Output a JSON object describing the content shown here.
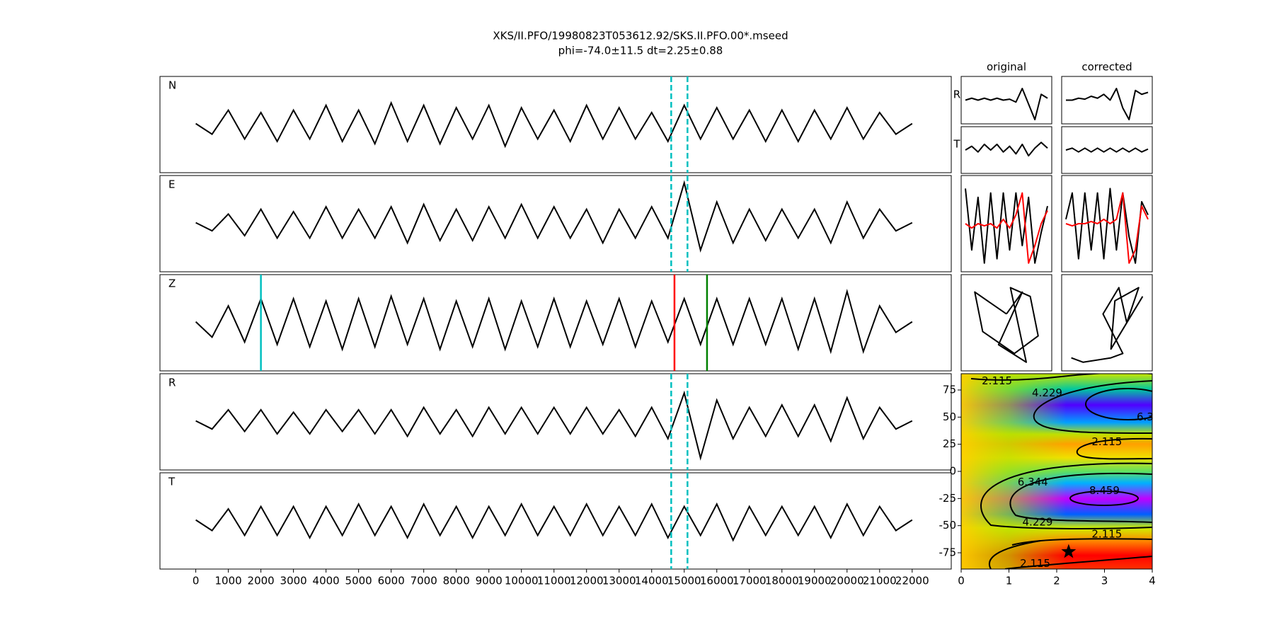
{
  "chart_data": {
    "type": "line",
    "title": "XKS/II.PFO/19980823T053612.92/SKS.II.PFO.00*.mseed",
    "subtitle": "phi=-74.0±11.5 dt=2.25±0.88",
    "xlim": [
      -1100,
      23200
    ],
    "xticks": [
      0,
      1000,
      2000,
      3000,
      4000,
      5000,
      6000,
      7000,
      8000,
      9000,
      10000,
      11000,
      12000,
      13000,
      14000,
      15000,
      16000,
      17000,
      18000,
      19000,
      20000,
      21000,
      22000
    ],
    "ylim": [
      -1,
      1
    ],
    "x": [
      0,
      500,
      1000,
      1500,
      2000,
      2500,
      3000,
      3500,
      4000,
      4500,
      5000,
      5500,
      6000,
      6500,
      7000,
      7500,
      8000,
      8500,
      9000,
      9500,
      10000,
      10500,
      11000,
      11500,
      12000,
      12500,
      13000,
      13500,
      14000,
      14500,
      15000,
      15500,
      16000,
      16500,
      17000,
      17500,
      18000,
      18500,
      19000,
      19500,
      20000,
      20500,
      21000,
      21500,
      22000
    ],
    "traces": [
      {
        "name": "N",
        "color": "#000000",
        "values": [
          0.02,
          -0.2,
          0.3,
          -0.3,
          0.25,
          -0.35,
          0.3,
          -0.3,
          0.4,
          -0.35,
          0.3,
          -0.4,
          0.45,
          -0.35,
          0.4,
          -0.4,
          0.35,
          -0.3,
          0.4,
          -0.45,
          0.35,
          -0.3,
          0.3,
          -0.35,
          0.4,
          -0.3,
          0.35,
          -0.3,
          0.25,
          -0.35,
          0.4,
          -0.3,
          0.35,
          -0.3,
          0.3,
          -0.35,
          0.3,
          -0.35,
          0.3,
          -0.3,
          0.35,
          -0.3,
          0.25,
          -0.2,
          0.02
        ]
      },
      {
        "name": "E",
        "color": "#000000",
        "values": [
          0.02,
          -0.15,
          0.2,
          -0.25,
          0.3,
          -0.3,
          0.25,
          -0.3,
          0.35,
          -0.3,
          0.3,
          -0.3,
          0.35,
          -0.4,
          0.4,
          -0.35,
          0.3,
          -0.35,
          0.35,
          -0.3,
          0.4,
          -0.3,
          0.35,
          -0.3,
          0.3,
          -0.4,
          0.3,
          -0.3,
          0.35,
          -0.3,
          0.85,
          -0.55,
          0.45,
          -0.4,
          0.3,
          -0.35,
          0.3,
          -0.3,
          0.3,
          -0.4,
          0.45,
          -0.3,
          0.3,
          -0.15,
          0.02
        ]
      },
      {
        "name": "Z",
        "color": "#000000",
        "values": [
          0.02,
          -0.3,
          0.35,
          -0.4,
          0.5,
          -0.45,
          0.5,
          -0.5,
          0.45,
          -0.55,
          0.5,
          -0.5,
          0.55,
          -0.45,
          0.5,
          -0.55,
          0.45,
          -0.5,
          0.5,
          -0.55,
          0.45,
          -0.5,
          0.5,
          -0.5,
          0.45,
          -0.45,
          0.5,
          -0.5,
          0.45,
          -0.4,
          0.5,
          -0.45,
          0.5,
          -0.45,
          0.5,
          -0.45,
          0.5,
          -0.55,
          0.5,
          -0.6,
          0.65,
          -0.6,
          0.35,
          -0.2,
          0.02
        ]
      },
      {
        "name": "R",
        "color": "#000000",
        "values": [
          0.02,
          -0.15,
          0.25,
          -0.2,
          0.25,
          -0.25,
          0.2,
          -0.25,
          0.25,
          -0.2,
          0.25,
          -0.25,
          0.25,
          -0.3,
          0.3,
          -0.25,
          0.25,
          -0.3,
          0.3,
          -0.25,
          0.3,
          -0.25,
          0.3,
          -0.25,
          0.3,
          -0.25,
          0.25,
          -0.3,
          0.3,
          -0.35,
          0.6,
          -0.75,
          0.45,
          -0.35,
          0.3,
          -0.3,
          0.35,
          -0.3,
          0.35,
          -0.4,
          0.5,
          -0.35,
          0.3,
          -0.15,
          0.02
        ]
      },
      {
        "name": "T",
        "color": "#000000",
        "values": [
          0.02,
          -0.2,
          0.25,
          -0.3,
          0.3,
          -0.3,
          0.3,
          -0.35,
          0.3,
          -0.3,
          0.35,
          -0.3,
          0.3,
          -0.35,
          0.35,
          -0.3,
          0.3,
          -0.35,
          0.3,
          -0.3,
          0.35,
          -0.3,
          0.3,
          -0.3,
          0.35,
          -0.3,
          0.3,
          -0.3,
          0.35,
          -0.35,
          0.3,
          -0.3,
          0.35,
          -0.4,
          0.3,
          -0.3,
          0.3,
          -0.3,
          0.3,
          -0.35,
          0.35,
          -0.3,
          0.3,
          -0.2,
          0.02
        ]
      }
    ],
    "window": [
      14600,
      15100
    ],
    "window_color": "#00bfbf",
    "picks": [
      {
        "x": 2000,
        "color": "#00bfbf"
      },
      {
        "x": 14700,
        "color": "#ff0000"
      },
      {
        "x": 15700,
        "color": "#008000"
      }
    ],
    "columns": [
      {
        "title": "original",
        "R": [
          0,
          0.1,
          0,
          0.1,
          0,
          0.1,
          0,
          0.05,
          -0.1,
          0.6,
          -0.2,
          -1,
          0.3,
          0.1
        ],
        "T": [
          0,
          0.2,
          -0.1,
          0.3,
          0,
          0.3,
          -0.1,
          0.2,
          -0.2,
          0.3,
          -0.3,
          0.1,
          0.4,
          0.1
        ],
        "waves": [
          0.8,
          -0.6,
          0.6,
          -0.9,
          0.7,
          -0.8,
          0.7,
          -0.6,
          0.7,
          -0.5,
          0.6,
          -0.9,
          -0.2,
          0.4
        ],
        "waves_shifted": [
          0,
          -0.1,
          0,
          -0.05,
          0,
          -0.1,
          0.1,
          -0.1,
          0.2,
          0.7,
          -0.9,
          -0.5,
          0,
          0.3
        ],
        "pm_x": [
          0,
          -0.8,
          -0.6,
          0.2,
          0.8,
          0.6,
          0.1,
          0.5,
          -0.2,
          0.4,
          0
        ],
        "pm_y": [
          0.2,
          0.7,
          -0.2,
          -0.7,
          -0.3,
          0.6,
          0.8,
          -0.9,
          -0.5,
          0.7,
          0.2
        ]
      },
      {
        "title": "corrected",
        "R": [
          0,
          0,
          0.1,
          0.05,
          0.2,
          0.1,
          0.3,
          0,
          0.6,
          -0.4,
          -1,
          0.5,
          0.3,
          0.4
        ],
        "T": [
          0,
          0.1,
          -0.1,
          0.1,
          -0.1,
          0.1,
          -0.1,
          0.1,
          -0.1,
          0.1,
          -0.1,
          0.1,
          -0.1,
          0.05
        ],
        "waves": [
          0.1,
          0.7,
          -0.8,
          0.7,
          -0.6,
          0.7,
          -0.8,
          0.8,
          -0.6,
          0.7,
          -0.3,
          -0.9,
          0.5,
          0.2
        ],
        "waves_shifted": [
          0,
          -0.05,
          0,
          0,
          0.05,
          0,
          0.1,
          0,
          0.1,
          0.7,
          -0.9,
          -0.6,
          0.4,
          0.1
        ],
        "pm_x": [
          -0.9,
          -0.6,
          0.1,
          0.4,
          -0.1,
          0.3,
          0.5,
          0.8,
          0.2,
          0.1,
          0.9
        ],
        "pm_y": [
          -0.8,
          -0.9,
          -0.8,
          -0.7,
          0.2,
          0.8,
          0,
          0.8,
          0.5,
          -0.6,
          0.6
        ]
      }
    ],
    "row_labels": [
      "R",
      "T"
    ],
    "wave_colors": [
      "#000000",
      "#ff0000"
    ],
    "surface": {
      "xlim": [
        0,
        4
      ],
      "xticks": [
        0,
        1,
        2,
        3,
        4
      ],
      "ylim": [
        -90,
        90
      ],
      "yticks": [
        75,
        50,
        25,
        0,
        -25,
        -50,
        -75
      ],
      "contour_labels": [
        {
          "label": "2.115",
          "x": 0.75,
          "y": 83
        },
        {
          "label": "4.229",
          "x": 1.8,
          "y": 72
        },
        {
          "label": "6.3",
          "x": 3.85,
          "y": 50
        },
        {
          "label": "2.115",
          "x": 3.05,
          "y": 27
        },
        {
          "label": "6.344",
          "x": 1.5,
          "y": -10
        },
        {
          "label": "8.459",
          "x": 3.0,
          "y": -18
        },
        {
          "label": "4.229",
          "x": 1.6,
          "y": -47
        },
        {
          "label": "2.115",
          "x": 3.05,
          "y": -58
        },
        {
          "label": "2.115",
          "x": 1.55,
          "y": -85
        }
      ],
      "best": [
        2.25,
        -74
      ]
    }
  }
}
